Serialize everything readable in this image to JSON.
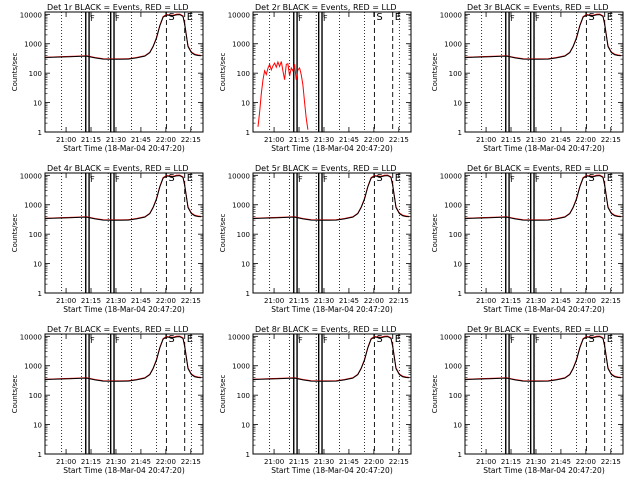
{
  "x_ticks": [
    "21:00",
    "21:15",
    "21:30",
    "21:45",
    "22:00",
    "22:15"
  ],
  "y_ticks": [
    "1",
    "10",
    "100",
    "1000",
    "10000"
  ],
  "ylabel": "Counts/sec",
  "xlabel": "Start Time (18-Mar-04 20:47:20)",
  "marker_S": "S",
  "marker_E": "E",
  "marker_F": "F",
  "colors": {
    "events": "#000000",
    "lld": "#ff0000"
  },
  "panels": [
    {
      "title": "Det 1r BLACK = Events, RED = LLD"
    },
    {
      "title": "Det 2r BLACK = Events, RED = LLD"
    },
    {
      "title": "Det 3r BLACK = Events, RED = LLD"
    },
    {
      "title": "Det 4r BLACK = Events, RED = LLD"
    },
    {
      "title": "Det 5r BLACK = Events, RED = LLD"
    },
    {
      "title": "Det 6r BLACK = Events, RED = LLD"
    },
    {
      "title": "Det 7r BLACK = Events, RED = LLD"
    },
    {
      "title": "Det 8r BLACK = Events, RED = LLD"
    },
    {
      "title": "Det 9r BLACK = Events, RED = LLD"
    }
  ],
  "chart_data": {
    "type": "line",
    "panel_count": 9,
    "x_unit": "minutes after 20:47:20",
    "xlim": [
      0,
      95
    ],
    "ylim": [
      1,
      12000
    ],
    "yscale": "log",
    "vertical_lines": {
      "solid": [
        24.5,
        26.5,
        39.5,
        41.5
      ],
      "dotted": [
        10,
        22,
        38,
        52,
        67,
        88
      ],
      "dashed": [
        73,
        84
      ]
    },
    "series": [
      {
        "name": "Events",
        "color": "#000000",
        "x": [
          0,
          5,
          10,
          15,
          20,
          25,
          30,
          35,
          40,
          45,
          50,
          55,
          60,
          63,
          65,
          67,
          69,
          71,
          73,
          75,
          77,
          79,
          81,
          83,
          84,
          86,
          88,
          90,
          92,
          94
        ],
        "y": [
          340,
          345,
          355,
          360,
          370,
          380,
          330,
          300,
          295,
          295,
          300,
          330,
          380,
          500,
          800,
          1500,
          4000,
          8000,
          9500,
          9200,
          9000,
          9600,
          9800,
          8500,
          4500,
          800,
          500,
          420,
          400,
          390
        ]
      },
      {
        "name": "LLD",
        "color": "#ff0000",
        "x": [
          0,
          5,
          10,
          15,
          20,
          25,
          30,
          35,
          40,
          45,
          50,
          55,
          60,
          63,
          65,
          67,
          69,
          71,
          73,
          75,
          77,
          79,
          81,
          83,
          84,
          86,
          88,
          90,
          92,
          94
        ],
        "y": [
          350,
          355,
          365,
          370,
          380,
          390,
          340,
          310,
          305,
          305,
          310,
          340,
          390,
          510,
          820,
          1600,
          4200,
          8400,
          9900,
          9500,
          9300,
          10000,
          10200,
          8900,
          4700,
          850,
          520,
          440,
          415,
          400
        ]
      }
    ],
    "det2_lld": {
      "name": "LLD",
      "color": "#ff0000",
      "x": [
        3,
        4,
        5,
        6,
        7,
        8,
        9,
        10,
        11,
        12,
        13,
        14,
        15,
        16,
        17,
        18,
        19,
        20,
        21,
        22,
        23,
        24,
        25,
        26,
        27,
        28,
        29,
        30,
        31,
        32,
        33
      ],
      "y": [
        1.5,
        5,
        20,
        60,
        120,
        90,
        150,
        200,
        130,
        180,
        220,
        160,
        240,
        170,
        250,
        120,
        60,
        200,
        210,
        80,
        150,
        120,
        200,
        60,
        130,
        150,
        90,
        40,
        10,
        3,
        1.2
      ]
    }
  }
}
